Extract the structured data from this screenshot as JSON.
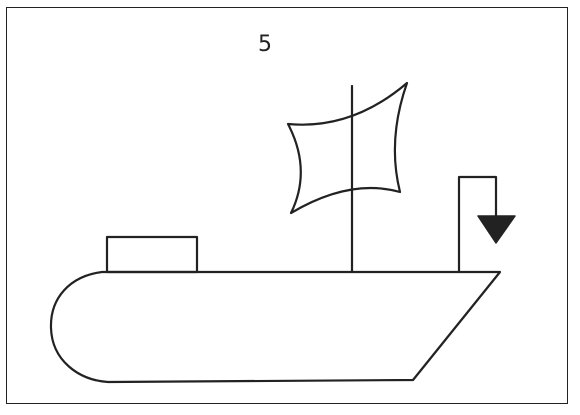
{
  "figure": {
    "number": "5"
  },
  "colors": {
    "stroke": "#222222",
    "background": "#ffffff"
  },
  "icons": {
    "hull": "boat-hull-icon",
    "cabin": "cabin-icon",
    "mast": "mast-icon",
    "sail": "sail-icon",
    "davit": "davit-icon",
    "anchor_weight": "triangle-weight-icon"
  }
}
